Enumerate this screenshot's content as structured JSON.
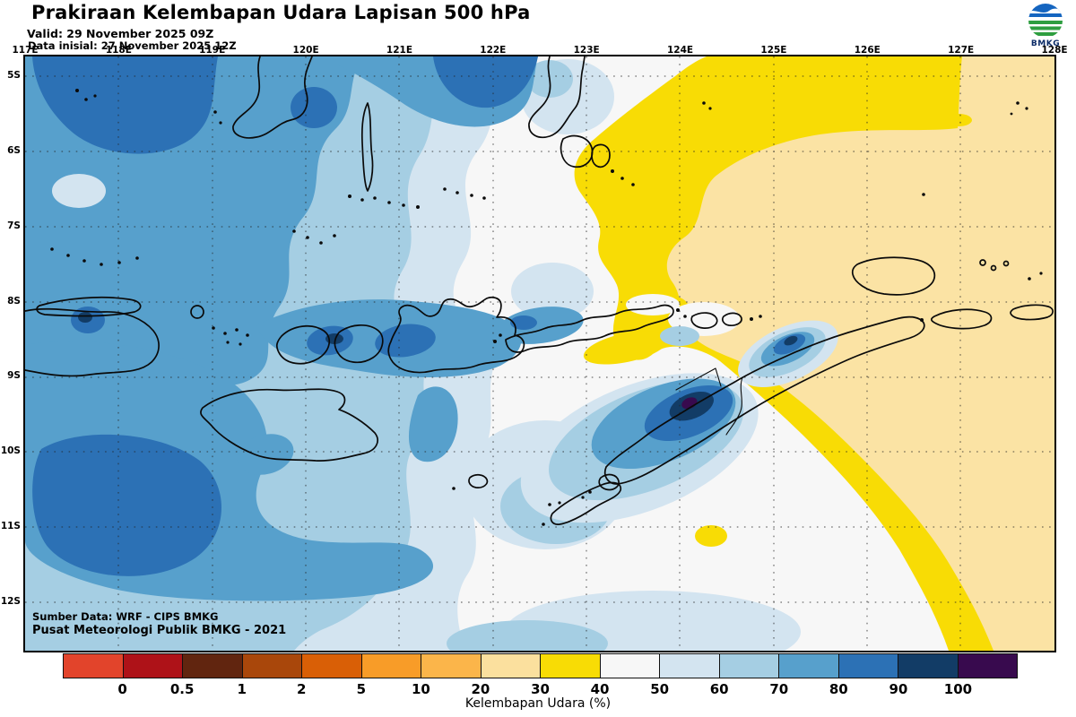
{
  "header": {
    "title": "Prakiraan Kelembapan Udara Lapisan 500 hPa",
    "valid_line": "Valid: 29 November 2025 09Z",
    "init_line": "Data inisial: 27 November 2025 12Z"
  },
  "logo": {
    "label": "BMKG"
  },
  "map": {
    "lon_ticks": [
      "117E",
      "118E",
      "119E",
      "120E",
      "121E",
      "122E",
      "123E",
      "124E",
      "125E",
      "126E",
      "127E",
      "128E"
    ],
    "lat_ticks": [
      "5S",
      "6S",
      "7S",
      "8S",
      "9S",
      "10S",
      "11S",
      "12S"
    ],
    "source_line1": "Sumber Data: WRF - CIPS BMKG",
    "source_line2": "Pusat Meteorologi Publik BMKG - 2021"
  },
  "colorbar": {
    "caption": "Kelembapan Udara (%)",
    "ticks": [
      "0",
      "0.5",
      "1",
      "2",
      "5",
      "10",
      "20",
      "30",
      "40",
      "50",
      "60",
      "70",
      "80",
      "90",
      "100"
    ],
    "colors": [
      "#E2442B",
      "#AE1218",
      "#61250F",
      "#A9470B",
      "#D95F06",
      "#F89C28",
      "#FBB54A",
      "#FBE09E",
      "#F8DC05",
      "#F7F7F7",
      "#D3E4F0",
      "#A5CEE3",
      "#57A0CC",
      "#2C71B5",
      "#123C66",
      "#380A4E"
    ]
  },
  "chart_data": {
    "type": "heatmap",
    "title": "Prakiraan Kelembapan Udara Lapisan 500 hPa",
    "variable": "Kelembapan Udara (%)",
    "valid": "29 November 2025 09Z",
    "initial": "27 November 2025 12Z",
    "extent": {
      "lon_min": "117E",
      "lon_max": "128E",
      "lat_min": "5S",
      "lat_max": "12S"
    },
    "levels": [
      0,
      0.5,
      1,
      2,
      5,
      10,
      20,
      30,
      40,
      50,
      60,
      70,
      80,
      90,
      100
    ],
    "summary": [
      {
        "region": "west (117E-120E)",
        "humidity_pct": "60-90"
      },
      {
        "region": "northeast and east (124E-128E, 5S-9S)",
        "humidity_pct": "20-40"
      },
      {
        "region": "West Timor local maximum (~124E 9.5S)",
        "humidity_pct": "90-100"
      },
      {
        "region": "southwest maximum (117-119E 10-11S)",
        "humidity_pct": "80-90"
      },
      {
        "region": "center (121E-123E)",
        "humidity_pct": "40-60"
      },
      {
        "region": "southeast diagonal band",
        "humidity_pct": "30-40"
      }
    ]
  }
}
